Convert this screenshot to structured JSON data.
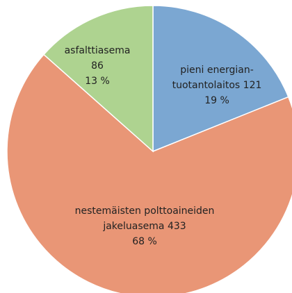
{
  "chart_data": {
    "type": "pie",
    "categories": [
      "pieni energian-tuotantolaitos",
      "nestemäisten polttoaineiden jakeluasema",
      "asfalttiasema"
    ],
    "values": [
      121,
      433,
      86
    ],
    "percentages": [
      19,
      68,
      13
    ],
    "percentage_labels": [
      "19 %",
      "68 %",
      "13 %"
    ],
    "colors": [
      "#7ba7d2",
      "#e99676",
      "#aed390"
    ]
  }
}
